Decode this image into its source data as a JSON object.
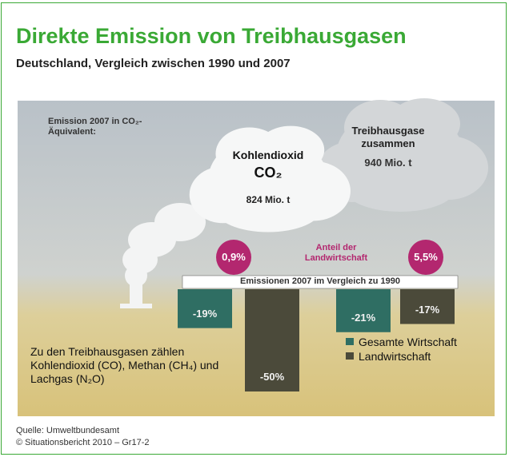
{
  "chart_data": {
    "type": "bar",
    "title": "Direkte Emission von Treibhausgasen",
    "subtitle": "Deutschland, Vergleich zwischen 1990 und 2007",
    "header": "Emission 2007 in CO₂-Äquivalent:",
    "categories": [
      "Kohlendioxid",
      "Treibhausgase zusammen"
    ],
    "formula": "CO₂",
    "totals": [
      824,
      940
    ],
    "total_labels": [
      "824 Mio. t",
      "940 Mio. t"
    ],
    "share_caption": "Anteil der Landwirtschaft",
    "shares": [
      0.9,
      5.5
    ],
    "share_labels": [
      "0,9%",
      "5,5%"
    ],
    "comparison_title": "Emissionen 2007 im Vergleich zu 1990",
    "series": [
      {
        "name": "Gesamte Wirtschaft",
        "color": "#2f6e63",
        "values": [
          -19,
          -21
        ],
        "value_labels": [
          "-19%",
          "-21%"
        ]
      },
      {
        "name": "Landwirtschaft",
        "color": "#4b4a3a",
        "values": [
          -50,
          -17
        ],
        "value_labels": [
          "-50%",
          "-17%"
        ]
      }
    ],
    "note": "Zu den Treibhausgasen zählen Kohlendioxid (CO), Methan (CH₄) und Lachgas (N₂O)",
    "source": "Quelle: Umweltbundesamt",
    "copyright": "© Situationsbericht 2010 – Gr17-2"
  }
}
